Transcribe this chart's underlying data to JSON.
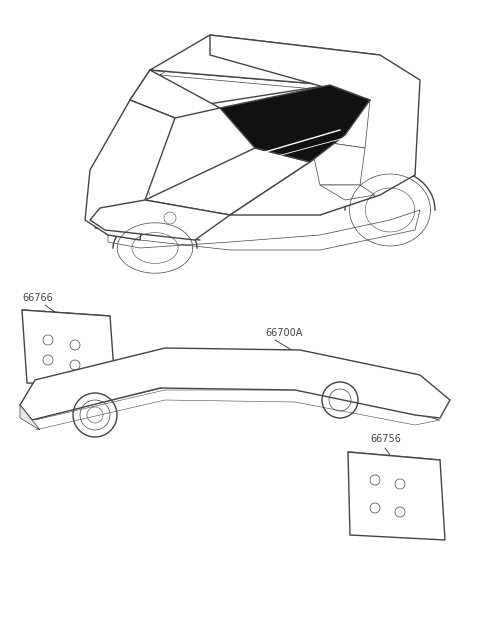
{
  "background_color": "#ffffff",
  "line_color": "#444444",
  "text_color": "#444444",
  "figsize": [
    4.8,
    6.17
  ],
  "dpi": 100,
  "label_66766": "66766",
  "label_66700A": "66700A",
  "label_66756": "66756",
  "label_fs": 7.0,
  "lw_outer": 1.0,
  "lw_inner": 0.5,
  "lw_thin": 0.4
}
